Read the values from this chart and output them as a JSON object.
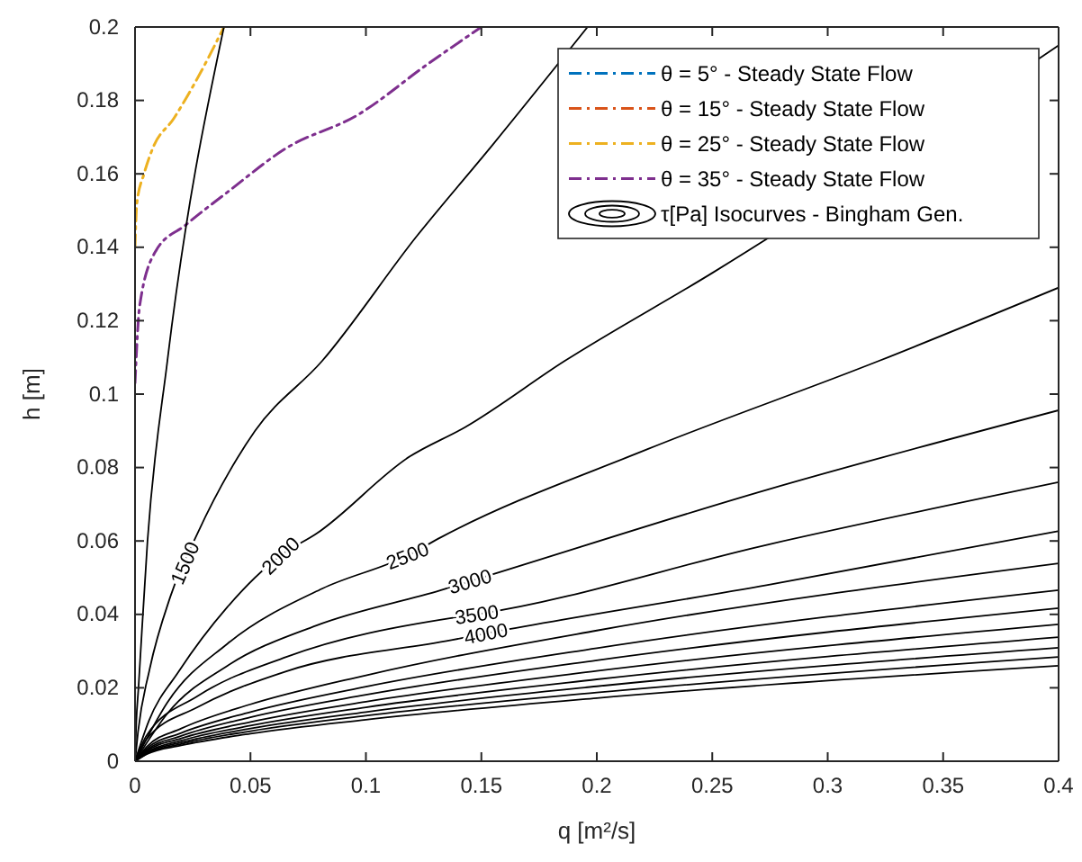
{
  "chart_data": {
    "type": "line",
    "xlabel": "q [m²/s]",
    "ylabel": "h [m]",
    "xlim": [
      0,
      0.4
    ],
    "xticks": [
      0,
      0.05,
      0.1,
      0.15,
      0.2,
      0.25,
      0.3,
      0.35,
      0.4
    ],
    "ylim": [
      0,
      0.2
    ],
    "yticks": [
      0,
      0.02,
      0.04,
      0.06,
      0.08,
      0.1,
      0.12,
      0.14,
      0.16,
      0.18,
      0.2
    ],
    "grid": false,
    "legend": "top right",
    "series": [
      {
        "name": "θ = 5° - Steady State Flow",
        "color": "#0072bd",
        "line_style": "dashdot"
      },
      {
        "name": "θ = 15° - Steady State Flow",
        "color": "#d95319",
        "line_style": "dashdot"
      },
      {
        "name": "θ = 25° - Steady State Flow",
        "color": "#edb120",
        "line_style": "dashdot",
        "x": [
          0,
          0.0008,
          0.0039,
          0.0077,
          0.0167,
          0.027,
          0.0385
        ],
        "values": [
          0.14,
          0.152,
          0.16,
          0.167,
          0.175,
          0.186,
          0.2
        ]
      },
      {
        "name": "θ = 35° - Steady State Flow",
        "color": "#7e2f8e",
        "line_style": "dashdot",
        "x": [
          0,
          0.002,
          0.009,
          0.0218,
          0.04,
          0.0655,
          0.0963,
          0.127,
          0.15
        ],
        "values": [
          0.103,
          0.124,
          0.139,
          0.146,
          0.155,
          0.167,
          0.176,
          0.19,
          0.2
        ]
      },
      {
        "name": "τ[Pa] Isocurves - Bingham Gen.",
        "color": "#000000",
        "line_style": "solid",
        "x": [
          0,
          0.0005,
          0.0015,
          0.0054,
          0.014,
          0.0385
        ],
        "values": [
          0,
          0.01,
          0.02,
          0.06,
          0.109,
          0.2
        ]
      },
      {
        "color": "#000000",
        "line_style": "solid",
        "x": [
          0,
          0.0013,
          0.0063,
          0.0154,
          0.027,
          0.052,
          0.081,
          0.122,
          0.155,
          0.196
        ],
        "values": [
          0,
          0.008,
          0.025,
          0.045,
          0.062,
          0.09,
          0.109,
          0.143,
          0.168,
          0.2
        ]
      },
      {
        "color": "#000000",
        "line_style": "solid",
        "x": [
          0,
          0.006,
          0.019,
          0.04,
          0.063,
          0.0786,
          0.119,
          0.143,
          0.186,
          0.25,
          0.4
        ],
        "values": [
          0,
          0.011,
          0.0245,
          0.042,
          0.056,
          0.062,
          0.083,
          0.091,
          0.109,
          0.133,
          0.195
        ]
      },
      {
        "color": "#000000",
        "line_style": "solid",
        "x": [
          0,
          0.014,
          0.04,
          0.081,
          0.118,
          0.1325,
          0.222,
          0.322,
          0.4
        ],
        "values": [
          0,
          0.016,
          0.032,
          0.047,
          0.056,
          0.061,
          0.085,
          0.109,
          0.129
        ]
      },
      {
        "color": "#000000",
        "line_style": "solid",
        "x": [
          0,
          0.014,
          0.04,
          0.0786,
          0.1325,
          0.145,
          0.274,
          0.4
        ],
        "values": [
          0,
          0.013,
          0.026,
          0.037,
          0.0466,
          0.049,
          0.074,
          0.0956
        ]
      },
      {
        "color": "#000000",
        "line_style": "solid",
        "x": [
          0,
          0.005,
          0.027,
          0.0655,
          0.137,
          0.148,
          0.274,
          0.4
        ],
        "values": [
          0,
          0.007,
          0.0177,
          0.0284,
          0.039,
          0.04,
          0.059,
          0.076
        ]
      },
      {
        "color": "#000000",
        "line_style": "solid",
        "x": [
          0,
          0.005,
          0.027,
          0.0655,
          0.137,
          0.152,
          0.274,
          0.4
        ],
        "values": [
          0,
          0.006,
          0.0147,
          0.0245,
          0.033,
          0.0348,
          0.048,
          0.0627
        ]
      },
      {
        "color": "#000000",
        "line_style": "solid",
        "x": [
          0,
          0.005,
          0.02,
          0.05,
          0.1,
          0.2,
          0.4
        ],
        "values": [
          0,
          0.0039,
          0.0089,
          0.0155,
          0.0234,
          0.0356,
          0.0539
        ]
      },
      {
        "color": "#000000",
        "line_style": "solid",
        "x": [
          0,
          0.005,
          0.02,
          0.05,
          0.1,
          0.2,
          0.4
        ],
        "values": [
          0,
          0.0034,
          0.0077,
          0.0134,
          0.0203,
          0.0308,
          0.0466
        ]
      },
      {
        "color": "#000000",
        "line_style": "solid",
        "x": [
          0,
          0.005,
          0.02,
          0.05,
          0.1,
          0.2,
          0.4
        ],
        "values": [
          0,
          0.003,
          0.0069,
          0.012,
          0.0181,
          0.0275,
          0.0417
        ]
      },
      {
        "color": "#000000",
        "line_style": "solid",
        "x": [
          0,
          0.005,
          0.02,
          0.05,
          0.1,
          0.2,
          0.4
        ],
        "values": [
          0,
          0.0027,
          0.0062,
          0.0107,
          0.0162,
          0.0246,
          0.0373
        ]
      },
      {
        "color": "#000000",
        "line_style": "solid",
        "x": [
          0,
          0.005,
          0.02,
          0.05,
          0.1,
          0.2,
          0.4
        ],
        "values": [
          0,
          0.0024,
          0.0056,
          0.0097,
          0.0147,
          0.0223,
          0.0338
        ]
      },
      {
        "color": "#000000",
        "line_style": "solid",
        "x": [
          0,
          0.005,
          0.02,
          0.05,
          0.1,
          0.2,
          0.4
        ],
        "values": [
          0,
          0.0022,
          0.0051,
          0.0089,
          0.0134,
          0.0204,
          0.0309
        ]
      },
      {
        "color": "#000000",
        "line_style": "solid",
        "x": [
          0,
          0.005,
          0.02,
          0.05,
          0.1,
          0.2,
          0.4
        ],
        "values": [
          0,
          0.002,
          0.0047,
          0.0082,
          0.0124,
          0.0187,
          0.0284
        ]
      },
      {
        "color": "#000000",
        "line_style": "solid",
        "x": [
          0,
          0.005,
          0.02,
          0.05,
          0.1,
          0.2,
          0.4
        ],
        "values": [
          0,
          0.0019,
          0.0043,
          0.0075,
          0.0113,
          0.0172,
          0.026
        ]
      }
    ],
    "annotations": [
      {
        "text": "1500",
        "x": 0.0216,
        "y": 0.054
      },
      {
        "text": "2000",
        "x": 0.063,
        "y": 0.056
      },
      {
        "text": "2500",
        "x": 0.118,
        "y": 0.056
      },
      {
        "text": "3000",
        "x": 0.145,
        "y": 0.049
      },
      {
        "text": "3500",
        "x": 0.148,
        "y": 0.04
      },
      {
        "text": "4000",
        "x": 0.152,
        "y": 0.0348
      }
    ]
  }
}
